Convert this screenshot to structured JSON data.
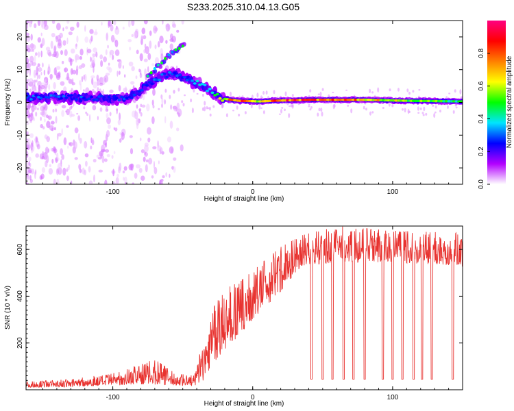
{
  "title": "S233.2025.310.04.13.G05",
  "chart_data": [
    {
      "type": "heatmap",
      "xlabel": "Height of straight line (km)",
      "ylabel": "Frequency (Hz)",
      "xlim": [
        -162,
        150
      ],
      "ylim": [
        -25,
        25
      ],
      "xticks": [
        -100,
        0,
        100
      ],
      "yticks": [
        -20,
        -10,
        0,
        10,
        20
      ],
      "colorbar": {
        "label": "Normalized spectral amplitude",
        "range": [
          0.0,
          1.0
        ],
        "ticks": [
          0.0,
          0.2,
          0.4,
          0.6,
          0.8
        ],
        "colormap": "rainbow",
        "colors": [
          "#ffffff",
          "#b300ff",
          "#0000ff",
          "#00e5ff",
          "#00ff00",
          "#ffff00",
          "#ff8000",
          "#ff0000",
          "#ff0080"
        ]
      },
      "ridge": [
        {
          "x": -162,
          "f": 1.5,
          "amp": 0.3
        },
        {
          "x": -130,
          "f": 1.5,
          "amp": 0.3
        },
        {
          "x": -100,
          "f": 1.2,
          "amp": 0.25
        },
        {
          "x": -88,
          "f": 1.5,
          "amp": 0.3
        },
        {
          "x": -82,
          "f": 3,
          "amp": 0.25
        },
        {
          "x": -75,
          "f": 5.5,
          "amp": 0.3
        },
        {
          "x": -65,
          "f": 8,
          "amp": 0.3
        },
        {
          "x": -55,
          "f": 9,
          "amp": 0.3
        },
        {
          "x": -48,
          "f": 7,
          "amp": 0.3
        },
        {
          "x": -38,
          "f": 5.5,
          "amp": 0.4
        },
        {
          "x": -30,
          "f": 3.5,
          "amp": 0.45
        },
        {
          "x": -22,
          "f": 1.2,
          "amp": 0.6
        },
        {
          "x": -10,
          "f": 0.5,
          "amp": 0.9
        },
        {
          "x": 5,
          "f": 0.3,
          "amp": 0.6
        },
        {
          "x": 15,
          "f": 0.5,
          "amp": 0.85
        },
        {
          "x": 40,
          "f": 0.8,
          "amp": 0.85
        },
        {
          "x": 80,
          "f": 0.8,
          "amp": 0.75
        },
        {
          "x": 110,
          "f": 0.5,
          "amp": 0.6
        },
        {
          "x": 150,
          "f": 0.3,
          "amp": 0.5
        }
      ],
      "upper_branch": [
        {
          "x": -75,
          "f": 8
        },
        {
          "x": -65,
          "f": 12
        },
        {
          "x": -55,
          "f": 16
        },
        {
          "x": -48,
          "f": 18
        }
      ]
    },
    {
      "type": "line",
      "xlabel": "Height of straight line (km)",
      "ylabel": "SNR (10 * v/v)",
      "xlim": [
        -162,
        150
      ],
      "ylim": [
        0,
        700
      ],
      "xticks": [
        -100,
        0,
        100
      ],
      "yticks": [
        200,
        400,
        600
      ],
      "line_color": "#e8322f",
      "envelope": [
        {
          "x": -162,
          "lo": 10,
          "hi": 35
        },
        {
          "x": -130,
          "lo": 12,
          "hi": 45
        },
        {
          "x": -100,
          "lo": 18,
          "hi": 70
        },
        {
          "x": -80,
          "lo": 25,
          "hi": 110
        },
        {
          "x": -70,
          "lo": 22,
          "hi": 130
        },
        {
          "x": -55,
          "lo": 18,
          "hi": 70
        },
        {
          "x": -42,
          "lo": 15,
          "hi": 60
        },
        {
          "x": -35,
          "lo": 40,
          "hi": 220
        },
        {
          "x": -30,
          "lo": 100,
          "hi": 330
        },
        {
          "x": -20,
          "lo": 170,
          "hi": 430
        },
        {
          "x": -10,
          "lo": 230,
          "hi": 460
        },
        {
          "x": 0,
          "lo": 300,
          "hi": 510
        },
        {
          "x": 10,
          "lo": 360,
          "hi": 560
        },
        {
          "x": 20,
          "lo": 420,
          "hi": 610
        },
        {
          "x": 35,
          "lo": 530,
          "hi": 660
        },
        {
          "x": 60,
          "lo": 545,
          "hi": 700
        },
        {
          "x": 100,
          "lo": 545,
          "hi": 680
        },
        {
          "x": 150,
          "lo": 530,
          "hi": 670
        }
      ],
      "dropouts": {
        "x": [
          42,
          50,
          57,
          65,
          72,
          80,
          93,
          100,
          107,
          115,
          121,
          128,
          143
        ],
        "snr": 45
      }
    }
  ]
}
